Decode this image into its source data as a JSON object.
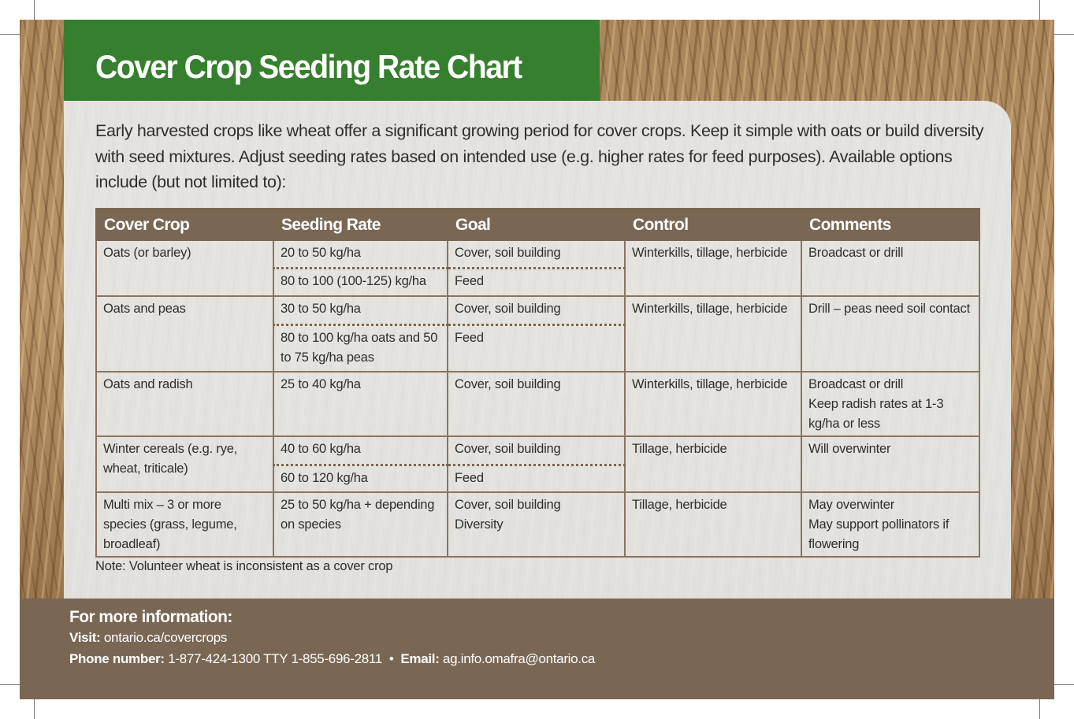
{
  "title": "Cover Crop Seeding Rate Chart",
  "intro": "Early harvested crops like wheat offer a significant growing period for cover crops. Keep it simple with oats or build diversity with seed mixtures. Adjust seeding rates based on intended use (e.g. higher rates for feed purposes). Available options include (but not limited to):",
  "table": {
    "headers": [
      "Cover Crop",
      "Seeding Rate",
      "Goal",
      "Control",
      "Comments"
    ],
    "rows": [
      {
        "crop": "Oats (or barley)",
        "control": "Winterkills, tillage, herbicide",
        "comments": "Broadcast or drill",
        "options": [
          {
            "rate": "20 to 50 kg/ha",
            "goal": "Cover, soil building"
          },
          {
            "rate": "80 to 100 (100-125) kg/ha",
            "goal": "Feed"
          }
        ]
      },
      {
        "crop": "Oats and peas",
        "control": "Winterkills, tillage, herbicide",
        "comments": "Drill – peas need soil contact",
        "options": [
          {
            "rate": "30 to 50 kg/ha",
            "goal": "Cover, soil building"
          },
          {
            "rate": "80 to 100 kg/ha oats and 50 to 75 kg/ha peas",
            "goal": "Feed"
          }
        ]
      },
      {
        "crop": "Oats and radish",
        "control": "Winterkills, tillage, herbicide",
        "comments": "Broadcast or drill\nKeep radish rates at 1-3 kg/ha or less",
        "options": [
          {
            "rate": "25 to 40 kg/ha",
            "goal": "Cover, soil building"
          }
        ]
      },
      {
        "crop": "Winter cereals (e.g. rye, wheat, triticale)",
        "control": "Tillage, herbicide",
        "comments": "Will overwinter",
        "options": [
          {
            "rate": "40 to 60 kg/ha",
            "goal": "Cover, soil building"
          },
          {
            "rate": "60 to 120 kg/ha",
            "goal": "Feed"
          }
        ]
      },
      {
        "crop": "Multi mix – 3 or more species (grass, legume, broadleaf)",
        "control": "Tillage, herbicide",
        "comments": "May overwinter\nMay support pollinators if flowering",
        "options": [
          {
            "rate": "25 to 50 kg/ha + depending on species",
            "goal": "Cover, soil building\nDiversity"
          }
        ]
      }
    ]
  },
  "note": "Note: Volunteer wheat is inconsistent as a cover crop",
  "footer": {
    "heading": "For more information:",
    "visit_label": "Visit:",
    "visit_value": "ontario.ca/covercrops",
    "phone_label": "Phone number:",
    "phone_value": "1-877-424-1300 TTY 1-855-696-2811",
    "separator": "•",
    "email_label": "Email:",
    "email_value": "ag.info.omafra@ontario.ca"
  },
  "colors": {
    "green": "#367f2e",
    "brown": "#7a6753"
  }
}
